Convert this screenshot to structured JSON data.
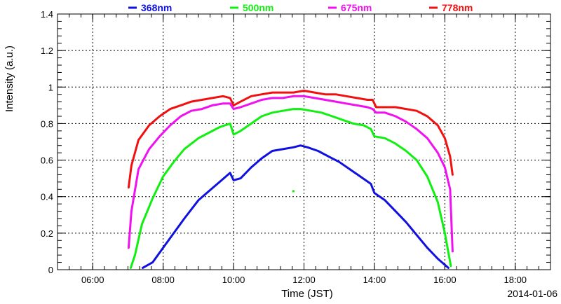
{
  "chart_data": {
    "type": "line",
    "title": "",
    "xlabel": "Time (JST)",
    "ylabel": "Intensity (a.u.)",
    "date_label": "2014-01-06",
    "xlim": [
      5.0,
      19.0
    ],
    "ylim": [
      0,
      1.4
    ],
    "x_ticks": [
      {
        "value": 6,
        "label": "06:00"
      },
      {
        "value": 8,
        "label": "08:00"
      },
      {
        "value": 10,
        "label": "10:00"
      },
      {
        "value": 12,
        "label": "12:00"
      },
      {
        "value": 14,
        "label": "14:00"
      },
      {
        "value": 16,
        "label": "16:00"
      },
      {
        "value": 18,
        "label": "18:00"
      }
    ],
    "y_ticks": [
      {
        "value": 0,
        "label": "0"
      },
      {
        "value": 0.2,
        "label": "0.2"
      },
      {
        "value": 0.4,
        "label": "0.4"
      },
      {
        "value": 0.6,
        "label": "0.6"
      },
      {
        "value": 0.8,
        "label": "0.8"
      },
      {
        "value": 1.0,
        "label": "1"
      },
      {
        "value": 1.2,
        "label": "1.2"
      },
      {
        "value": 1.4,
        "label": "1.4"
      }
    ],
    "grid": true,
    "legend_position": "top",
    "series": [
      {
        "name": "368nm",
        "color": "#1010e0",
        "x": [
          7.42,
          7.7,
          8.0,
          8.3,
          8.6,
          9.0,
          9.3,
          9.6,
          9.9,
          10.0,
          10.2,
          10.5,
          10.8,
          11.1,
          11.4,
          11.7,
          11.9,
          12.1,
          12.4,
          12.7,
          13.0,
          13.3,
          13.6,
          13.9,
          14.0,
          14.3,
          14.6,
          14.9,
          15.2,
          15.5,
          15.8,
          16.1
        ],
        "values": [
          0.01,
          0.04,
          0.12,
          0.2,
          0.28,
          0.38,
          0.43,
          0.48,
          0.53,
          0.49,
          0.5,
          0.56,
          0.61,
          0.65,
          0.66,
          0.67,
          0.68,
          0.67,
          0.65,
          0.62,
          0.59,
          0.55,
          0.51,
          0.47,
          0.42,
          0.38,
          0.32,
          0.26,
          0.19,
          0.12,
          0.06,
          0.01
        ]
      },
      {
        "name": "500nm",
        "color": "#10f010",
        "x": [
          7.08,
          7.2,
          7.4,
          7.7,
          8.0,
          8.3,
          8.6,
          9.0,
          9.3,
          9.6,
          9.9,
          10.0,
          10.2,
          10.5,
          10.8,
          11.1,
          11.4,
          11.7,
          11.9,
          12.2,
          12.5,
          12.8,
          13.1,
          13.4,
          13.7,
          13.9,
          14.0,
          14.3,
          14.6,
          14.9,
          15.2,
          15.5,
          15.8,
          16.0,
          16.17
        ],
        "values": [
          0.01,
          0.08,
          0.25,
          0.39,
          0.51,
          0.59,
          0.66,
          0.72,
          0.75,
          0.78,
          0.8,
          0.74,
          0.76,
          0.8,
          0.84,
          0.86,
          0.87,
          0.88,
          0.88,
          0.87,
          0.86,
          0.84,
          0.82,
          0.8,
          0.79,
          0.77,
          0.73,
          0.72,
          0.69,
          0.65,
          0.6,
          0.51,
          0.37,
          0.2,
          0.02
        ]
      },
      {
        "name": "675nm",
        "color": "#f010f0",
        "x": [
          7.02,
          7.1,
          7.3,
          7.6,
          7.9,
          8.2,
          8.5,
          8.8,
          9.1,
          9.4,
          9.7,
          9.9,
          10.0,
          10.2,
          10.5,
          10.8,
          11.1,
          11.4,
          11.7,
          12.0,
          12.3,
          12.6,
          12.9,
          13.2,
          13.5,
          13.8,
          13.95,
          14.05,
          14.3,
          14.6,
          14.9,
          15.2,
          15.5,
          15.8,
          16.0,
          16.15,
          16.22
        ],
        "values": [
          0.12,
          0.32,
          0.55,
          0.66,
          0.73,
          0.79,
          0.84,
          0.87,
          0.88,
          0.9,
          0.91,
          0.91,
          0.88,
          0.89,
          0.91,
          0.93,
          0.94,
          0.94,
          0.95,
          0.95,
          0.94,
          0.93,
          0.92,
          0.91,
          0.9,
          0.89,
          0.88,
          0.86,
          0.86,
          0.84,
          0.81,
          0.77,
          0.72,
          0.64,
          0.56,
          0.44,
          0.1
        ]
      },
      {
        "name": "778nm",
        "color": "#f01010",
        "x": [
          7.02,
          7.1,
          7.3,
          7.6,
          7.9,
          8.2,
          8.5,
          8.8,
          9.1,
          9.4,
          9.7,
          9.9,
          10.0,
          10.2,
          10.5,
          10.8,
          11.1,
          11.4,
          11.7,
          12.0,
          12.3,
          12.6,
          12.9,
          13.2,
          13.5,
          13.8,
          13.95,
          14.05,
          14.3,
          14.6,
          14.9,
          15.2,
          15.5,
          15.8,
          16.0,
          16.15,
          16.22
        ],
        "values": [
          0.45,
          0.57,
          0.71,
          0.79,
          0.84,
          0.88,
          0.9,
          0.92,
          0.93,
          0.94,
          0.95,
          0.94,
          0.9,
          0.92,
          0.95,
          0.96,
          0.97,
          0.97,
          0.97,
          0.98,
          0.97,
          0.96,
          0.96,
          0.95,
          0.94,
          0.93,
          0.93,
          0.89,
          0.89,
          0.89,
          0.88,
          0.87,
          0.84,
          0.79,
          0.72,
          0.62,
          0.52
        ]
      }
    ],
    "outlier_points": [
      {
        "series": "500nm",
        "x": 11.7,
        "y": 0.43
      }
    ]
  }
}
